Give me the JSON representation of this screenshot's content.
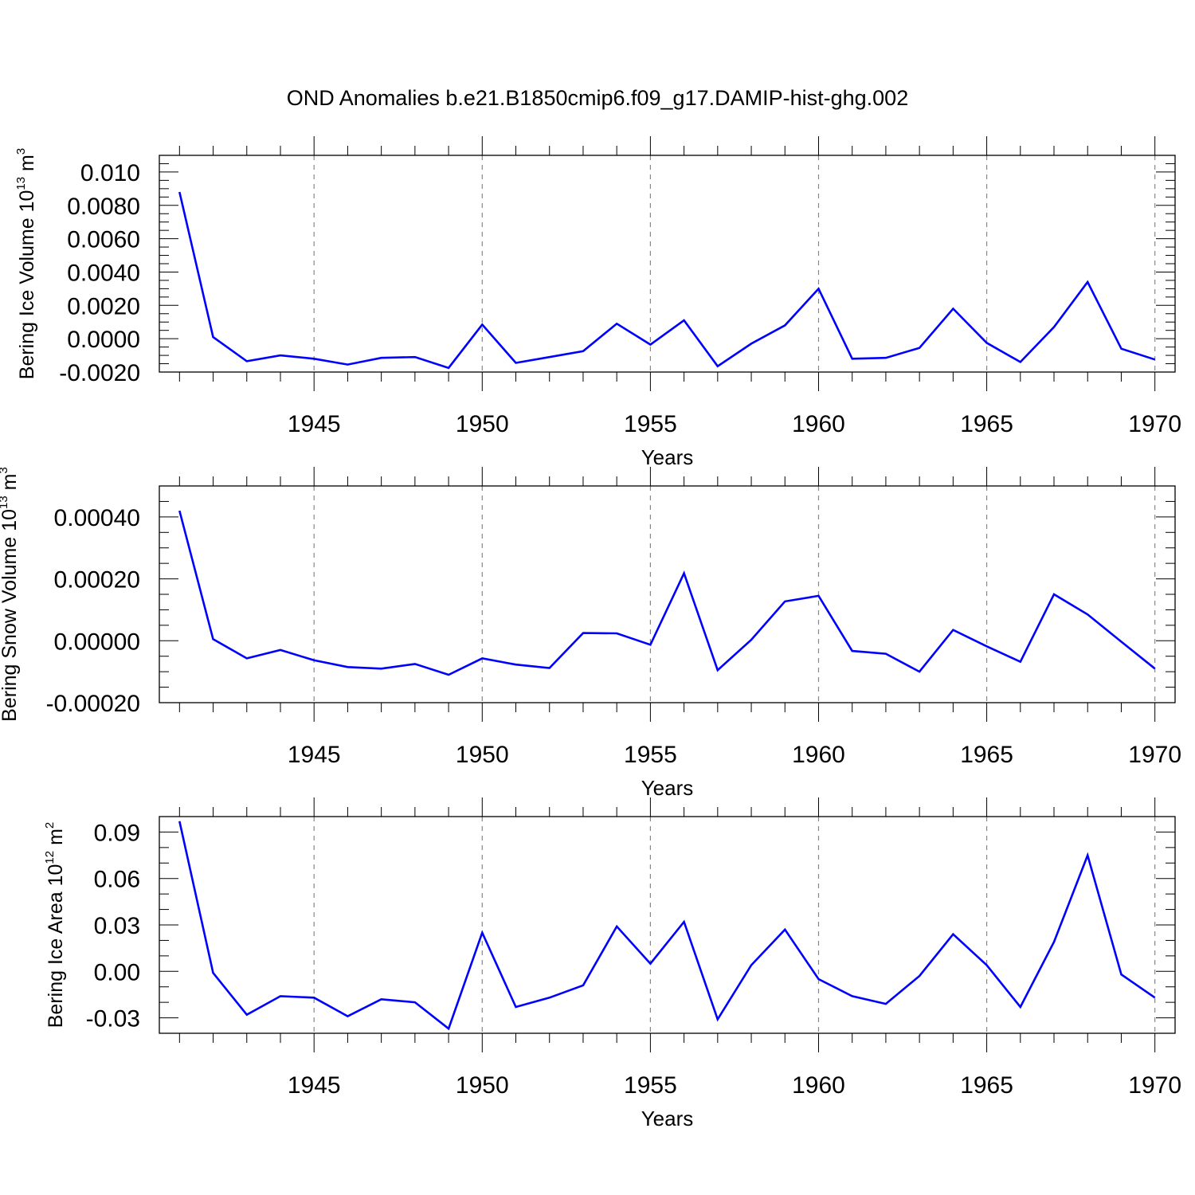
{
  "title": "OND Anomalies b.e21.B1850cmip6.f09_g17.DAMIP-hist-ghg.002",
  "colors": {
    "series": "#0000ff",
    "frame": "#000000",
    "grid": "#888888"
  },
  "chart_data": [
    {
      "type": "line",
      "ylabel": {
        "text": "Bering Ice Volume 10",
        "exp": "13",
        "unit": " m",
        "unit_exp": "3"
      },
      "xlabel": "Years",
      "xlim": [
        1940.4,
        1970.6
      ],
      "ylim": [
        -0.002,
        0.011
      ],
      "x_ticks": [
        1945,
        1950,
        1955,
        1960,
        1965,
        1970
      ],
      "x_tick_labels": [
        "1945",
        "1950",
        "1955",
        "1960",
        "1965",
        "1970"
      ],
      "y_ticks": [
        -0.002,
        0.0,
        0.002,
        0.004,
        0.006,
        0.008,
        0.01
      ],
      "y_tick_labels": [
        "-0.0020",
        "0.0000",
        "0.0020",
        "0.0040",
        "0.0060",
        "0.0080",
        "0.010"
      ],
      "y_minor_step": 0.0005,
      "grid": "vertical dashed at major x ticks",
      "series": [
        {
          "name": "Bering Ice Volume",
          "x": [
            1941,
            1942,
            1943,
            1944,
            1945,
            1946,
            1947,
            1948,
            1949,
            1950,
            1951,
            1952,
            1953,
            1954,
            1955,
            1956,
            1957,
            1958,
            1959,
            1960,
            1961,
            1962,
            1963,
            1964,
            1965,
            1966,
            1967,
            1968,
            1969,
            1970
          ],
          "values": [
            0.0088,
            0.0001,
            -0.00135,
            -0.001,
            -0.0012,
            -0.00155,
            -0.00115,
            -0.0011,
            -0.00175,
            0.00085,
            -0.00145,
            -0.0011,
            -0.00075,
            0.0009,
            -0.00035,
            0.0011,
            -0.00165,
            -0.0003,
            0.0008,
            0.003,
            -0.0012,
            -0.00115,
            -0.00055,
            0.0018,
            -0.00025,
            -0.0014,
            0.0007,
            0.0034,
            -0.0006,
            -0.00125
          ]
        }
      ]
    },
    {
      "type": "line",
      "ylabel": {
        "text": "Bering Snow Volume 10",
        "exp": "13",
        "unit": " m",
        "unit_exp": "3"
      },
      "xlabel": "Years",
      "xlim": [
        1940.4,
        1970.6
      ],
      "ylim": [
        -0.0002,
        0.0005
      ],
      "x_ticks": [
        1945,
        1950,
        1955,
        1960,
        1965,
        1970
      ],
      "x_tick_labels": [
        "1945",
        "1950",
        "1955",
        "1960",
        "1965",
        "1970"
      ],
      "y_ticks": [
        -0.0002,
        0.0,
        0.0002,
        0.0004
      ],
      "y_tick_labels": [
        "-0.00020",
        "0.00000",
        "0.00020",
        "0.00040"
      ],
      "y_minor_step": 5e-05,
      "grid": "vertical dashed at major x ticks",
      "series": [
        {
          "name": "Bering Snow Volume",
          "x": [
            1941,
            1942,
            1943,
            1944,
            1945,
            1946,
            1947,
            1948,
            1949,
            1950,
            1951,
            1952,
            1953,
            1954,
            1955,
            1956,
            1957,
            1958,
            1959,
            1960,
            1961,
            1962,
            1963,
            1964,
            1965,
            1966,
            1967,
            1968,
            1969,
            1970
          ],
          "values": [
            0.00042,
            5e-06,
            -5.7e-05,
            -3e-05,
            -6.3e-05,
            -8.5e-05,
            -9e-05,
            -7.5e-05,
            -0.00011,
            -5.7e-05,
            -7.7e-05,
            -8.8e-05,
            2.5e-05,
            2.4e-05,
            -1.3e-05,
            0.000218,
            -9.5e-05,
            3e-06,
            0.000127,
            0.000145,
            -3.3e-05,
            -4.2e-05,
            -0.0001,
            3.5e-05,
            -1.8e-05,
            -6.8e-05,
            0.00015,
            8.5e-05,
            -3e-06,
            -9e-05
          ]
        }
      ]
    },
    {
      "type": "line",
      "ylabel": {
        "text": "Bering Ice Area 10",
        "exp": "12",
        "unit": " m",
        "unit_exp": "2"
      },
      "xlabel": "Years",
      "xlim": [
        1940.4,
        1970.6
      ],
      "ylim": [
        -0.04,
        0.1
      ],
      "x_ticks": [
        1945,
        1950,
        1955,
        1960,
        1965,
        1970
      ],
      "x_tick_labels": [
        "1945",
        "1950",
        "1955",
        "1960",
        "1965",
        "1970"
      ],
      "y_ticks": [
        -0.03,
        0.0,
        0.03,
        0.06,
        0.09
      ],
      "y_tick_labels": [
        "-0.03",
        "0.00",
        "0.03",
        "0.06",
        "0.09"
      ],
      "y_minor_step": 0.01,
      "grid": "vertical dashed at major x ticks",
      "series": [
        {
          "name": "Bering Ice Area",
          "x": [
            1941,
            1942,
            1943,
            1944,
            1945,
            1946,
            1947,
            1948,
            1949,
            1950,
            1951,
            1952,
            1953,
            1954,
            1955,
            1956,
            1957,
            1958,
            1959,
            1960,
            1961,
            1962,
            1963,
            1964,
            1965,
            1966,
            1967,
            1968,
            1969,
            1970
          ],
          "values": [
            0.097,
            -0.001,
            -0.028,
            -0.016,
            -0.017,
            -0.029,
            -0.018,
            -0.02,
            -0.037,
            0.025,
            -0.023,
            -0.017,
            -0.009,
            0.029,
            0.005,
            0.032,
            -0.031,
            0.004,
            0.027,
            -0.005,
            -0.016,
            -0.021,
            -0.003,
            0.024,
            0.004,
            -0.023,
            0.019,
            0.075,
            -0.002,
            -0.017
          ]
        }
      ]
    }
  ]
}
